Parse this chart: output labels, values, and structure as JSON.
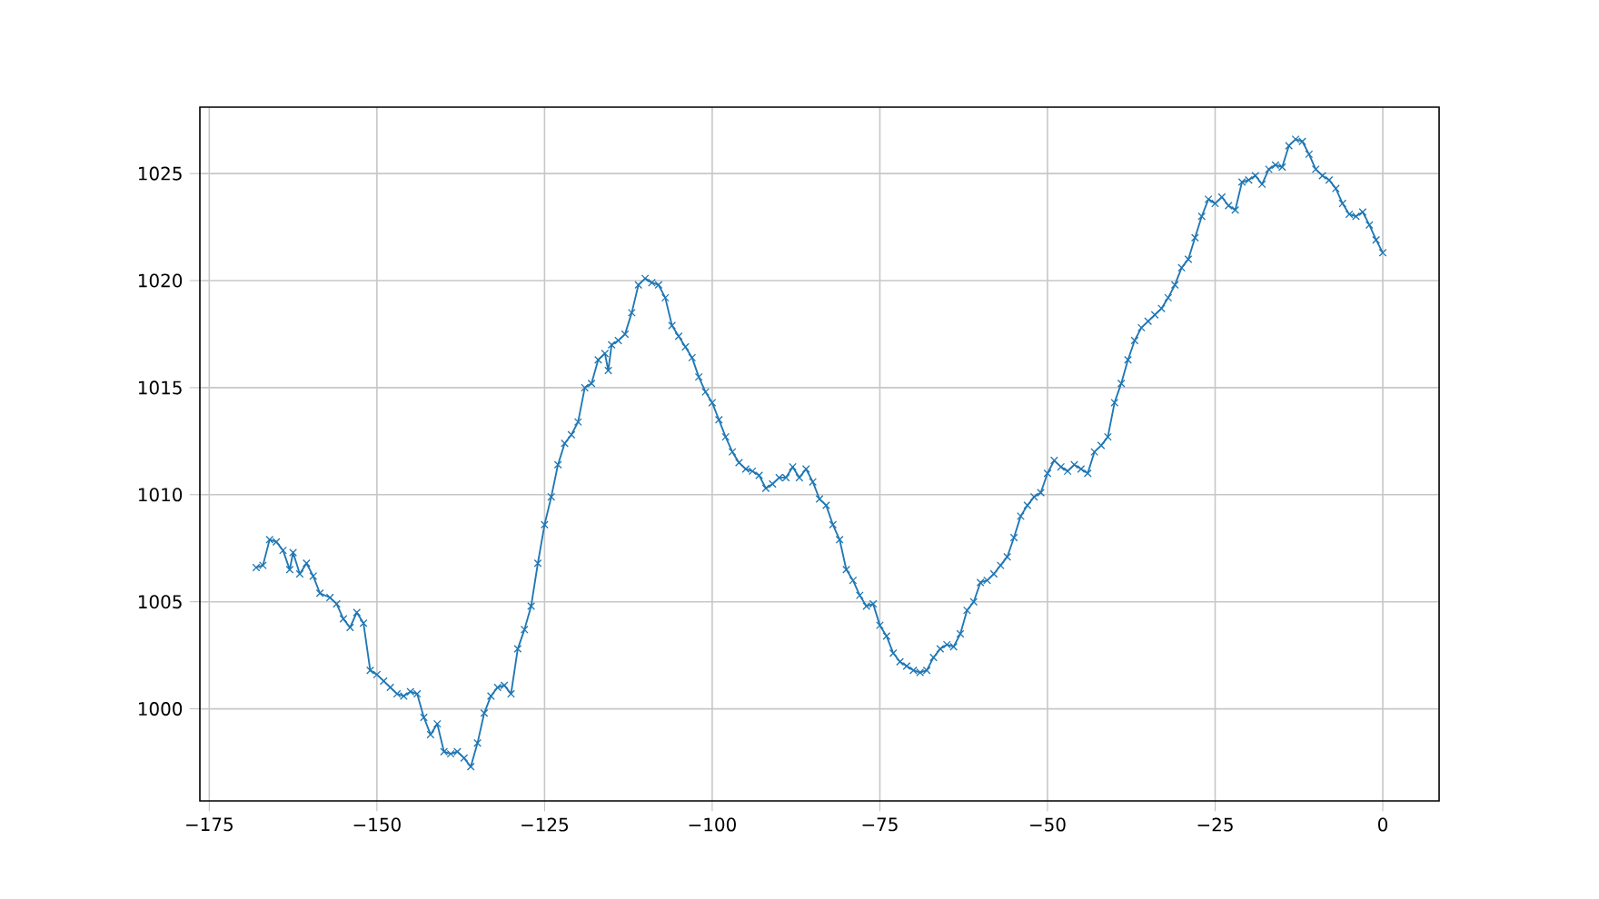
{
  "chart_data": {
    "type": "line",
    "x": [
      -168,
      -167,
      -166,
      -165,
      -164,
      -163,
      -162.5,
      -161.5,
      -160.5,
      -159.5,
      -158.5,
      -157,
      -156,
      -155,
      -154,
      -153,
      -152,
      -151,
      -150,
      -149,
      -148,
      -147,
      -146,
      -145,
      -144,
      -143,
      -142,
      -141,
      -140,
      -139,
      -138,
      -137,
      -136,
      -135,
      -134,
      -133,
      -132,
      -131,
      -130,
      -129,
      -128,
      -127,
      -126,
      -125,
      -124,
      -123,
      -122,
      -121,
      -120,
      -119,
      -118,
      -117,
      -116,
      -115.5,
      -115,
      -114,
      -113,
      -112,
      -111,
      -110,
      -109,
      -108,
      -107,
      -106,
      -105,
      -104,
      -103,
      -102,
      -101,
      -100,
      -99,
      -98,
      -97,
      -96,
      -95,
      -94,
      -93,
      -92,
      -91,
      -90,
      -89,
      -88,
      -87,
      -86,
      -85,
      -84,
      -83,
      -82,
      -81,
      -80,
      -79,
      -78,
      -77,
      -76,
      -75,
      -74,
      -73,
      -72,
      -71,
      -70,
      -69,
      -68,
      -67,
      -66,
      -65,
      -64,
      -63,
      -62,
      -61,
      -60,
      -59,
      -58,
      -57,
      -56,
      -55,
      -54,
      -53,
      -52,
      -51,
      -50,
      -49,
      -48,
      -47,
      -46,
      -45,
      -44,
      -43,
      -42,
      -41,
      -40,
      -39,
      -38,
      -37,
      -36,
      -35,
      -34,
      -33,
      -32,
      -31,
      -30,
      -29,
      -28,
      -27,
      -26,
      -25,
      -24,
      -23,
      -22,
      -21,
      -20,
      -19,
      -18,
      -17,
      -16,
      -15,
      -14,
      -13,
      -12,
      -11,
      -10,
      -9,
      -8,
      -7,
      -6,
      -5,
      -4,
      -3,
      -2,
      -1,
      0
    ],
    "series": [
      {
        "color": "#1f77b4",
        "values": [
          1006.6,
          1006.7,
          1007.9,
          1007.8,
          1007.4,
          1006.5,
          1007.3,
          1006.3,
          1006.8,
          1006.2,
          1005.4,
          1005.2,
          1004.9,
          1004.2,
          1003.8,
          1004.5,
          1004.0,
          1001.8,
          1001.6,
          1001.3,
          1001.0,
          1000.7,
          1000.6,
          1000.8,
          1000.7,
          999.6,
          998.8,
          999.3,
          998.0,
          997.9,
          998.0,
          997.7,
          997.3,
          998.4,
          999.8,
          1000.6,
          1001.0,
          1001.1,
          1000.7,
          1002.8,
          1003.7,
          1004.8,
          1006.8,
          1008.6,
          1009.9,
          1011.4,
          1012.4,
          1012.8,
          1013.4,
          1015.0,
          1015.2,
          1016.3,
          1016.6,
          1015.8,
          1017.0,
          1017.2,
          1017.5,
          1018.5,
          1019.8,
          1020.1,
          1019.9,
          1019.8,
          1019.2,
          1017.9,
          1017.4,
          1016.9,
          1016.4,
          1015.5,
          1014.8,
          1014.3,
          1013.5,
          1012.7,
          1012.0,
          1011.5,
          1011.2,
          1011.1,
          1010.9,
          1010.3,
          1010.5,
          1010.8,
          1010.8,
          1011.3,
          1010.8,
          1011.2,
          1010.6,
          1009.8,
          1009.5,
          1008.6,
          1007.9,
          1006.5,
          1006.0,
          1005.3,
          1004.8,
          1004.9,
          1003.9,
          1003.4,
          1002.6,
          1002.2,
          1002.0,
          1001.8,
          1001.7,
          1001.8,
          1002.4,
          1002.8,
          1003.0,
          1002.9,
          1003.5,
          1004.6,
          1005.0,
          1005.9,
          1006.0,
          1006.3,
          1006.7,
          1007.1,
          1008.0,
          1009.0,
          1009.5,
          1009.9,
          1010.1,
          1011.0,
          1011.6,
          1011.3,
          1011.1,
          1011.4,
          1011.2,
          1011.0,
          1012.0,
          1012.3,
          1012.7,
          1014.3,
          1015.2,
          1016.3,
          1017.2,
          1017.8,
          1018.1,
          1018.4,
          1018.7,
          1019.2,
          1019.8,
          1020.6,
          1021.0,
          1022.0,
          1023.0,
          1023.8,
          1023.6,
          1023.9,
          1023.5,
          1023.3,
          1024.6,
          1024.7,
          1024.9,
          1024.5,
          1025.2,
          1025.4,
          1025.3,
          1026.3,
          1026.6,
          1026.5,
          1025.9,
          1025.2,
          1024.9,
          1024.7,
          1024.3,
          1023.6,
          1023.1,
          1023.0,
          1023.2,
          1022.6,
          1021.9,
          1021.3
        ]
      }
    ],
    "marker": "cross",
    "line_style": "solid",
    "grid": true,
    "xlim": [
      -176.4,
      8.4
    ],
    "ylim": [
      995.7,
      1028.1
    ],
    "xticks": [
      {
        "value": -175,
        "label": "−175"
      },
      {
        "value": -150,
        "label": "−150"
      },
      {
        "value": -125,
        "label": "−125"
      },
      {
        "value": -100,
        "label": "−100"
      },
      {
        "value": -75,
        "label": "−75"
      },
      {
        "value": -50,
        "label": "−50"
      },
      {
        "value": -25,
        "label": "−25"
      },
      0
    ],
    "yticks": [
      1000,
      1005,
      1010,
      1015,
      1020,
      1025
    ]
  }
}
